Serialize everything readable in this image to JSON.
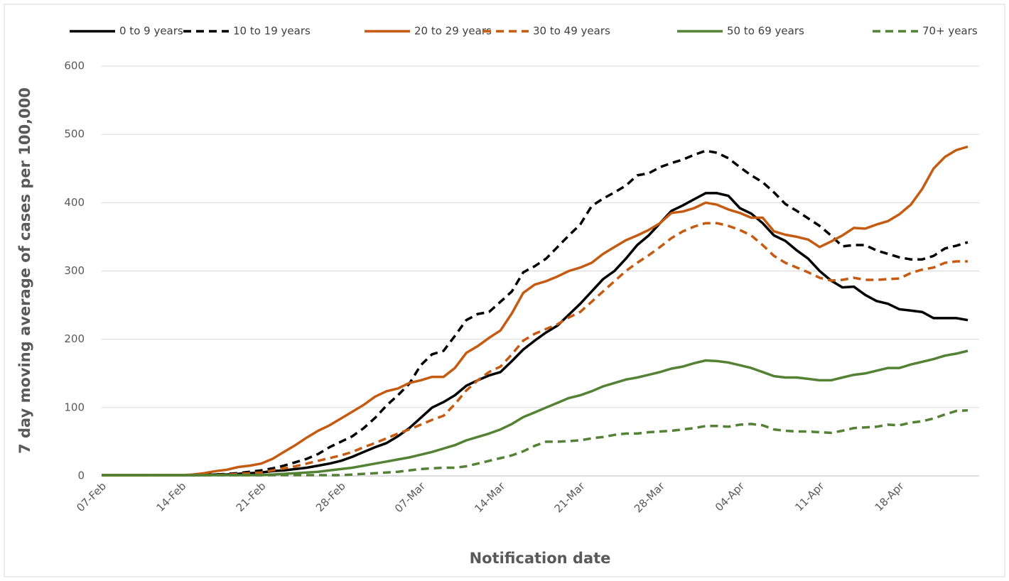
{
  "chart_data": {
    "type": "line",
    "x_title": "Notification date",
    "y_title": "7 day moving average of cases per 100,000",
    "x": [
      "07-Feb",
      null,
      null,
      null,
      null,
      null,
      null,
      "14-Feb",
      null,
      null,
      null,
      null,
      null,
      null,
      "21-Feb",
      null,
      null,
      null,
      null,
      null,
      null,
      "28-Feb",
      null,
      null,
      null,
      null,
      null,
      null,
      "07-Mar",
      null,
      null,
      null,
      null,
      null,
      null,
      "14-Mar",
      null,
      null,
      null,
      null,
      null,
      null,
      "21-Mar",
      null,
      null,
      null,
      null,
      null,
      null,
      "28-Mar",
      null,
      null,
      null,
      null,
      null,
      null,
      "04-Apr",
      null,
      null,
      null,
      null,
      null,
      null,
      "11-Apr",
      null,
      null,
      null,
      null,
      null,
      null,
      "18-Apr",
      null,
      null,
      null,
      null,
      null,
      null
    ],
    "ylim": [
      0,
      600
    ],
    "yticks": [
      0,
      100,
      200,
      300,
      400,
      500,
      600
    ],
    "grid": true,
    "legend": "top",
    "series": [
      {
        "name": "0 to 9 years",
        "color": "#000000",
        "style": "solid",
        "values": [
          1,
          1,
          1,
          1,
          1,
          1,
          1,
          1,
          1,
          1,
          2,
          2,
          3,
          4,
          5,
          7,
          8,
          10,
          12,
          15,
          18,
          22,
          28,
          35,
          42,
          48,
          58,
          70,
          85,
          100,
          108,
          118,
          132,
          140,
          147,
          152,
          168,
          185,
          198,
          210,
          220,
          236,
          252,
          270,
          288,
          300,
          318,
          338,
          352,
          370,
          388,
          396,
          405,
          414,
          414,
          410,
          392,
          384,
          370,
          352,
          344,
          330,
          318,
          300,
          286,
          276,
          277,
          265,
          256,
          252,
          244,
          242,
          240,
          231,
          231,
          231,
          228
        ]
      },
      {
        "name": "10 to 19 years",
        "color": "#000000",
        "style": "dashed",
        "values": [
          1,
          1,
          1,
          1,
          1,
          1,
          1,
          1,
          1,
          2,
          2,
          3,
          4,
          6,
          8,
          11,
          15,
          20,
          25,
          32,
          42,
          50,
          58,
          70,
          85,
          103,
          118,
          135,
          162,
          178,
          183,
          205,
          228,
          237,
          240,
          255,
          270,
          298,
          307,
          318,
          335,
          352,
          368,
          395,
          406,
          415,
          425,
          440,
          443,
          452,
          458,
          463,
          470,
          476,
          473,
          465,
          452,
          440,
          430,
          415,
          398,
          388,
          377,
          366,
          352,
          336,
          338,
          338,
          330,
          325,
          320,
          317,
          317,
          322,
          333,
          337,
          342
        ]
      },
      {
        "name": "20 to 29 years",
        "color": "#c55a11",
        "style": "solid",
        "values": [
          1,
          1,
          1,
          1,
          1,
          1,
          1,
          1,
          2,
          4,
          7,
          9,
          13,
          15,
          18,
          25,
          35,
          45,
          56,
          66,
          74,
          84,
          94,
          104,
          116,
          124,
          128,
          136,
          140,
          145,
          145,
          158,
          180,
          190,
          202,
          213,
          238,
          268,
          280,
          285,
          292,
          300,
          305,
          312,
          325,
          335,
          345,
          352,
          360,
          370,
          385,
          387,
          392,
          400,
          397,
          390,
          385,
          378,
          378,
          358,
          353,
          350,
          346,
          335,
          343,
          352,
          363,
          362,
          368,
          373,
          383,
          397,
          420,
          450,
          467,
          477,
          482
        ]
      },
      {
        "name": "30 to 49 years",
        "color": "#c55a11",
        "style": "dashed",
        "values": [
          1,
          1,
          1,
          1,
          1,
          1,
          1,
          1,
          1,
          1,
          1,
          2,
          3,
          4,
          5,
          8,
          11,
          14,
          18,
          22,
          26,
          30,
          35,
          42,
          48,
          55,
          62,
          68,
          75,
          82,
          88,
          105,
          125,
          140,
          152,
          160,
          178,
          198,
          208,
          215,
          222,
          232,
          240,
          255,
          270,
          285,
          300,
          312,
          323,
          335,
          348,
          358,
          365,
          370,
          370,
          366,
          360,
          352,
          338,
          322,
          312,
          305,
          298,
          290,
          286,
          287,
          290,
          287,
          287,
          288,
          289,
          297,
          302,
          305,
          312,
          314,
          314
        ]
      },
      {
        "name": "50 to 69 years",
        "color": "#548235",
        "style": "solid",
        "values": [
          1,
          1,
          1,
          1,
          1,
          1,
          1,
          1,
          1,
          1,
          1,
          1,
          1,
          1,
          1,
          2,
          3,
          4,
          5,
          6,
          8,
          10,
          12,
          15,
          18,
          21,
          24,
          27,
          31,
          35,
          40,
          45,
          52,
          57,
          62,
          68,
          76,
          86,
          93,
          100,
          107,
          114,
          118,
          124,
          131,
          136,
          141,
          144,
          148,
          152,
          157,
          160,
          165,
          169,
          168,
          166,
          162,
          158,
          152,
          146,
          144,
          144,
          142,
          140,
          140,
          144,
          148,
          150,
          154,
          158,
          158,
          163,
          167,
          171,
          176,
          179,
          183
        ]
      },
      {
        "name": "70+ years",
        "color": "#548235",
        "style": "dashed",
        "values": [
          1,
          1,
          1,
          1,
          1,
          1,
          1,
          1,
          1,
          1,
          1,
          1,
          1,
          1,
          1,
          1,
          1,
          1,
          1,
          1,
          1,
          1,
          2,
          3,
          4,
          5,
          6,
          8,
          10,
          11,
          12,
          12,
          14,
          18,
          22,
          26,
          30,
          36,
          44,
          50,
          50,
          51,
          52,
          55,
          57,
          60,
          62,
          62,
          64,
          65,
          66,
          68,
          70,
          73,
          73,
          72,
          75,
          76,
          74,
          68,
          66,
          65,
          65,
          64,
          63,
          66,
          70,
          71,
          72,
          75,
          74,
          78,
          80,
          84,
          90,
          95,
          96
        ]
      }
    ]
  }
}
